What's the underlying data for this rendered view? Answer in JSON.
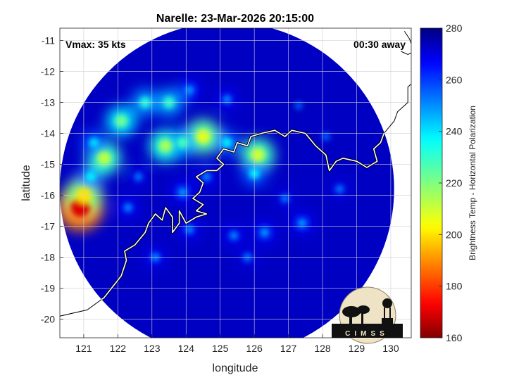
{
  "chart_data": {
    "type": "heatmap",
    "title": "Narelle: 23-Mar-2026 20:15:00",
    "xlabel": "longitude",
    "ylabel": "latitude",
    "xlim": [
      120.3,
      130.6
    ],
    "ylim": [
      -20.6,
      -10.6
    ],
    "y_reversed": true,
    "xticks": [
      121,
      122,
      123,
      124,
      125,
      126,
      127,
      128,
      129,
      130
    ],
    "yticks": [
      -11,
      -12,
      -13,
      -14,
      -15,
      -16,
      -17,
      -18,
      -19,
      -20
    ],
    "xtick_labels": [
      "121",
      "122",
      "123",
      "124",
      "125",
      "126",
      "127",
      "128",
      "129",
      "130"
    ],
    "ytick_labels": [
      "-11",
      "-12",
      "-13",
      "-14",
      "-15",
      "-16",
      "-17",
      "-18",
      "-19",
      "-20"
    ],
    "grid": true,
    "annotations": {
      "vmax": "Vmax: 35 kts",
      "time_offset": "00:30 away"
    },
    "colorbar": {
      "label": "Brightness Temp - Horizontal Polarization",
      "range": [
        160,
        280
      ],
      "ticks": [
        160,
        180,
        200,
        220,
        240,
        260,
        280
      ],
      "tick_labels": [
        "160",
        "180",
        "200",
        "220",
        "240",
        "260",
        "280"
      ],
      "colormap": "jet-reversed"
    },
    "swath": {
      "center_lon": 125.2,
      "center_lat": -15.8,
      "radius_deg": 4.9,
      "background_value": 273
    },
    "cold_features": [
      {
        "lon": 120.9,
        "lat": -16.4,
        "value": 170
      },
      {
        "lon": 121.0,
        "lat": -16.0,
        "value": 200
      },
      {
        "lon": 121.2,
        "lat": -15.4,
        "value": 238
      },
      {
        "lon": 121.6,
        "lat": -14.8,
        "value": 212
      },
      {
        "lon": 121.3,
        "lat": -14.3,
        "value": 240
      },
      {
        "lon": 122.1,
        "lat": -13.6,
        "value": 222
      },
      {
        "lon": 122.8,
        "lat": -13.0,
        "value": 232
      },
      {
        "lon": 123.5,
        "lat": -13.0,
        "value": 230
      },
      {
        "lon": 123.4,
        "lat": -14.4,
        "value": 215
      },
      {
        "lon": 124.5,
        "lat": -14.1,
        "value": 207
      },
      {
        "lon": 123.9,
        "lat": -14.3,
        "value": 228
      },
      {
        "lon": 125.2,
        "lat": -14.3,
        "value": 238
      },
      {
        "lon": 126.1,
        "lat": -14.7,
        "value": 210
      },
      {
        "lon": 126.0,
        "lat": -15.3,
        "value": 238
      },
      {
        "lon": 125.2,
        "lat": -12.9,
        "value": 250
      },
      {
        "lon": 124.1,
        "lat": -12.6,
        "value": 248
      },
      {
        "lon": 124.6,
        "lat": -15.4,
        "value": 250
      },
      {
        "lon": 123.9,
        "lat": -15.9,
        "value": 248
      },
      {
        "lon": 124.1,
        "lat": -17.1,
        "value": 250
      },
      {
        "lon": 125.4,
        "lat": -17.3,
        "value": 250
      },
      {
        "lon": 126.3,
        "lat": -17.2,
        "value": 248
      },
      {
        "lon": 127.4,
        "lat": -16.9,
        "value": 248
      },
      {
        "lon": 126.9,
        "lat": -16.1,
        "value": 252
      },
      {
        "lon": 125.8,
        "lat": -18.0,
        "value": 252
      },
      {
        "lon": 128.5,
        "lat": -15.8,
        "value": 252
      },
      {
        "lon": 123.1,
        "lat": -18.0,
        "value": 250
      },
      {
        "lon": 122.3,
        "lat": -16.4,
        "value": 250
      },
      {
        "lon": 122.6,
        "lat": -15.4,
        "value": 252
      },
      {
        "lon": 128.1,
        "lat": -14.1,
        "value": 255
      },
      {
        "lon": 127.3,
        "lat": -13.1,
        "value": 256
      }
    ],
    "coastline": [
      [
        [
          120.3,
          -19.9
        ],
        [
          121.1,
          -19.7
        ],
        [
          121.6,
          -19.3
        ],
        [
          122.1,
          -18.6
        ],
        [
          122.25,
          -18.1
        ],
        [
          122.2,
          -17.8
        ],
        [
          122.5,
          -17.6
        ],
        [
          122.8,
          -17.2
        ],
        [
          122.9,
          -16.9
        ],
        [
          123.1,
          -16.6
        ],
        [
          123.3,
          -16.8
        ],
        [
          123.4,
          -16.4
        ],
        [
          123.6,
          -16.7
        ],
        [
          123.6,
          -17.2
        ],
        [
          123.8,
          -16.9
        ],
        [
          123.8,
          -16.5
        ],
        [
          124.0,
          -16.9
        ],
        [
          124.3,
          -16.7
        ],
        [
          124.6,
          -16.6
        ],
        [
          124.3,
          -16.5
        ],
        [
          124.5,
          -16.3
        ],
        [
          124.2,
          -16.1
        ],
        [
          124.4,
          -15.9
        ],
        [
          124.5,
          -15.6
        ],
        [
          124.3,
          -15.4
        ],
        [
          124.6,
          -15.2
        ],
        [
          124.9,
          -15.2
        ],
        [
          125.1,
          -15.0
        ],
        [
          124.9,
          -14.8
        ],
        [
          125.1,
          -14.5
        ],
        [
          125.4,
          -14.6
        ],
        [
          125.5,
          -14.3
        ],
        [
          125.8,
          -14.4
        ],
        [
          125.9,
          -14.1
        ],
        [
          126.2,
          -14.0
        ],
        [
          126.6,
          -13.9
        ],
        [
          126.9,
          -14.1
        ],
        [
          127.1,
          -13.9
        ],
        [
          127.5,
          -14.0
        ],
        [
          127.8,
          -14.4
        ],
        [
          128.1,
          -14.7
        ],
        [
          128.2,
          -15.2
        ],
        [
          128.4,
          -14.9
        ],
        [
          128.6,
          -14.8
        ],
        [
          129.0,
          -14.9
        ],
        [
          129.3,
          -15.1
        ],
        [
          129.6,
          -14.9
        ],
        [
          129.5,
          -14.5
        ],
        [
          129.7,
          -14.3
        ],
        [
          129.8,
          -14.0
        ],
        [
          130.1,
          -13.6
        ],
        [
          130.2,
          -13.3
        ],
        [
          130.5,
          -13.0
        ],
        [
          130.5,
          -12.5
        ],
        [
          130.6,
          -12.4
        ]
      ],
      [
        [
          130.3,
          -11.35
        ],
        [
          130.5,
          -11.45
        ],
        [
          130.6,
          -11.4
        ]
      ],
      [
        [
          130.4,
          -10.7
        ],
        [
          130.55,
          -10.95
        ],
        [
          130.6,
          -11.1
        ]
      ]
    ]
  },
  "logo": {
    "text": "CIMSS"
  }
}
